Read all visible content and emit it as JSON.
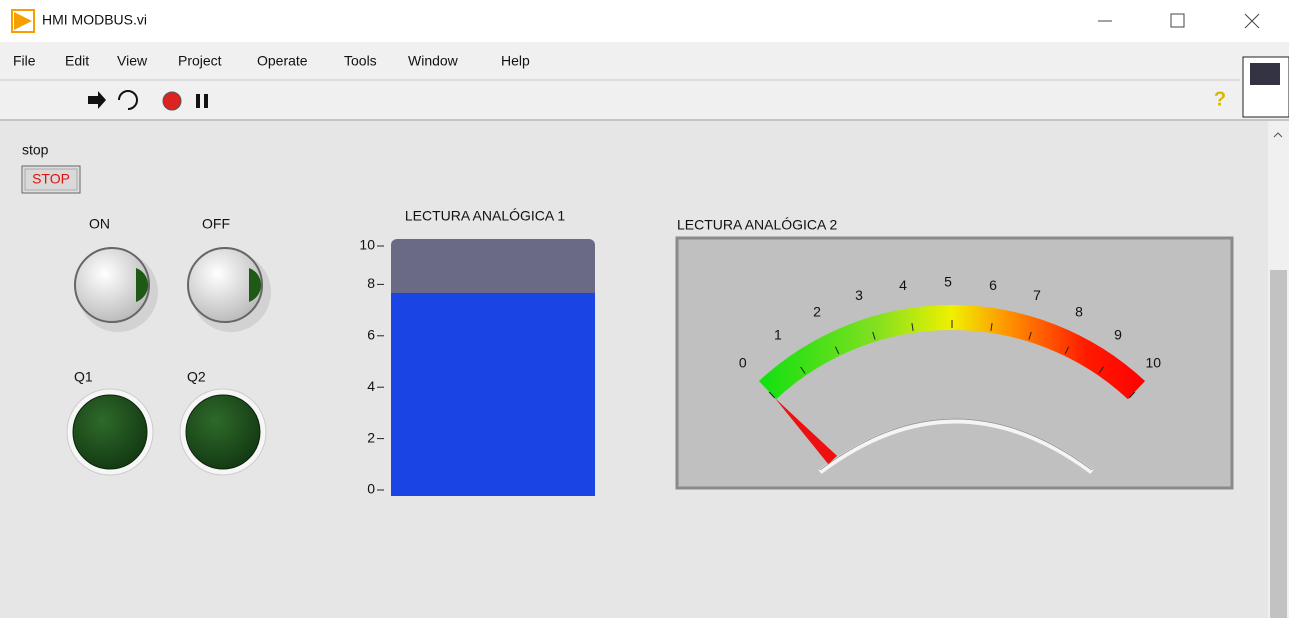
{
  "window": {
    "title": "HMI MODBUS.vi"
  },
  "menu": [
    "File",
    "Edit",
    "View",
    "Project",
    "Operate",
    "Tools",
    "Window",
    "Help"
  ],
  "panel": {
    "stop": {
      "label": "stop",
      "button": "STOP"
    },
    "buttons": [
      {
        "label": "ON"
      },
      {
        "label": "OFF"
      }
    ],
    "leds": [
      {
        "label": "Q1"
      },
      {
        "label": "Q2"
      }
    ],
    "tank": {
      "label": "LECTURA ANALÓGICA 1",
      "value": 7.9,
      "range": [
        0,
        10
      ],
      "ticks": [
        0,
        2,
        4,
        6,
        8,
        10
      ]
    },
    "gauge": {
      "label": "LECTURA ANALÓGICA 2",
      "value": 0,
      "range": [
        0,
        10
      ],
      "ticks": [
        0,
        1,
        2,
        3,
        4,
        5,
        6,
        7,
        8,
        9,
        10
      ]
    }
  }
}
